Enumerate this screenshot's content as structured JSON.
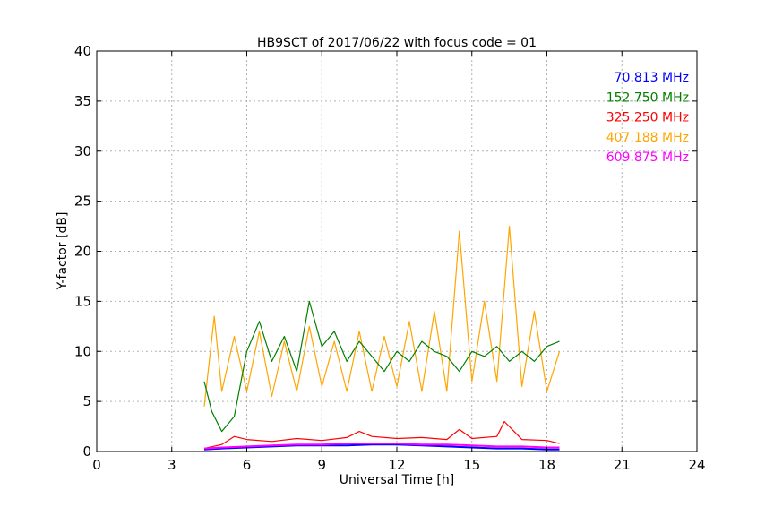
{
  "chart_data": {
    "type": "line",
    "title": "HB9SCT of 2017/06/22 with focus code = 01",
    "xlabel": "Universal Time [h]",
    "ylabel": "Y-factor [dB]",
    "xlim": [
      0,
      24
    ],
    "ylim": [
      0,
      40
    ],
    "xticks": [
      "0",
      "3",
      "6",
      "9",
      "12",
      "15",
      "18",
      "21",
      "24"
    ],
    "yticks": [
      "0",
      "5",
      "10",
      "15",
      "20",
      "25",
      "30",
      "35",
      "40"
    ],
    "grid": true,
    "legend_position": "top-right",
    "series": [
      {
        "name": "70.813 MHz",
        "color": "#0000ff",
        "x": [
          4.3,
          5.0,
          6.0,
          7.0,
          8.0,
          9.0,
          10.0,
          11.0,
          12.0,
          13.0,
          14.0,
          15.0,
          16.0,
          17.0,
          18.0,
          18.5
        ],
        "y": [
          0.2,
          0.3,
          0.4,
          0.5,
          0.6,
          0.6,
          0.6,
          0.7,
          0.7,
          0.6,
          0.5,
          0.4,
          0.3,
          0.3,
          0.2,
          0.2
        ]
      },
      {
        "name": "152.750 MHz",
        "color": "#008000",
        "x": [
          4.3,
          4.6,
          5.0,
          5.5,
          6.0,
          6.5,
          7.0,
          7.5,
          8.0,
          8.5,
          9.0,
          9.5,
          10.0,
          10.5,
          11.0,
          11.5,
          12.0,
          12.5,
          13.0,
          13.5,
          14.0,
          14.5,
          15.0,
          15.5,
          16.0,
          16.5,
          17.0,
          17.5,
          18.0,
          18.5
        ],
        "y": [
          7.0,
          4.0,
          2.0,
          3.5,
          10.0,
          13.0,
          9.0,
          11.5,
          8.0,
          15.0,
          10.5,
          12.0,
          9.0,
          11.0,
          9.5,
          8.0,
          10.0,
          9.0,
          11.0,
          10.0,
          9.5,
          8.0,
          10.0,
          9.5,
          10.5,
          9.0,
          10.0,
          9.0,
          10.5,
          11.0
        ]
      },
      {
        "name": "325.250 MHz",
        "color": "#ff0000",
        "x": [
          4.3,
          5.0,
          5.5,
          6.0,
          7.0,
          8.0,
          9.0,
          10.0,
          10.5,
          11.0,
          12.0,
          13.0,
          14.0,
          14.5,
          15.0,
          16.0,
          16.3,
          17.0,
          18.0,
          18.5
        ],
        "y": [
          0.3,
          0.7,
          1.5,
          1.2,
          1.0,
          1.3,
          1.1,
          1.4,
          2.0,
          1.5,
          1.3,
          1.4,
          1.2,
          2.2,
          1.3,
          1.5,
          3.0,
          1.2,
          1.1,
          0.8
        ]
      },
      {
        "name": "407.188 MHz",
        "color": "#ffa500",
        "x": [
          4.3,
          4.7,
          5.0,
          5.5,
          6.0,
          6.5,
          7.0,
          7.5,
          8.0,
          8.5,
          9.0,
          9.5,
          10.0,
          10.5,
          11.0,
          11.5,
          12.0,
          12.5,
          13.0,
          13.5,
          14.0,
          14.5,
          15.0,
          15.5,
          16.0,
          16.5,
          17.0,
          17.5,
          18.0,
          18.5
        ],
        "y": [
          4.5,
          13.5,
          6.0,
          11.5,
          6.0,
          12.0,
          5.5,
          11.0,
          6.0,
          12.5,
          6.5,
          11.0,
          6.0,
          12.0,
          6.0,
          11.5,
          6.5,
          13.0,
          6.0,
          14.0,
          6.0,
          22.0,
          7.0,
          15.0,
          7.0,
          22.5,
          6.5,
          14.0,
          6.0,
          10.0
        ]
      },
      {
        "name": "609.875 MHz",
        "color": "#ff00ff",
        "x": [
          4.3,
          5.0,
          6.0,
          7.0,
          8.0,
          9.0,
          10.0,
          11.0,
          12.0,
          13.0,
          14.0,
          15.0,
          16.0,
          17.0,
          18.0,
          18.5
        ],
        "y": [
          0.3,
          0.4,
          0.5,
          0.6,
          0.7,
          0.7,
          0.8,
          0.8,
          0.8,
          0.7,
          0.7,
          0.6,
          0.5,
          0.5,
          0.4,
          0.4
        ]
      }
    ]
  }
}
